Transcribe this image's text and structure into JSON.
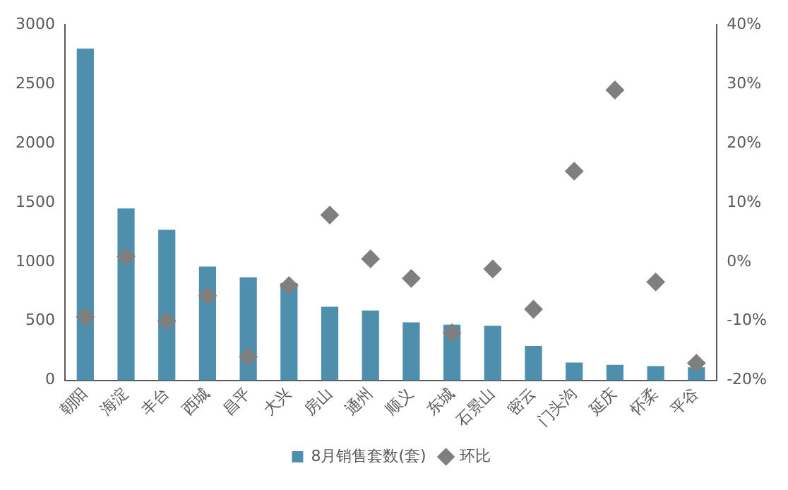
{
  "chart_data": {
    "type": "bar",
    "categories": [
      "朝阳",
      "海淀",
      "丰台",
      "西城",
      "昌平",
      "大兴",
      "房山",
      "通州",
      "顺义",
      "东城",
      "石景山",
      "密云",
      "门头沟",
      "延庆",
      "怀柔",
      "平谷"
    ],
    "series": [
      {
        "name": "8月销售套数(套)",
        "color": "#4f8fae",
        "values": [
          2800,
          1450,
          1270,
          960,
          870,
          820,
          620,
          590,
          490,
          470,
          460,
          290,
          150,
          130,
          120,
          110
        ]
      },
      {
        "name": "环比",
        "type": "scatter",
        "axis": "y2",
        "color": "#7f7f7f",
        "marker": "diamond",
        "values": [
          -9.3,
          0.9,
          -10,
          -5.7,
          -16,
          -4,
          7.9,
          0.5,
          -2.8,
          -12,
          -1.2,
          -8,
          15.3,
          29,
          -3.4,
          -17.1
        ]
      }
    ],
    "ylim": [
      0,
      3000
    ],
    "yticks": [
      0,
      500,
      1000,
      1500,
      2000,
      2500,
      3000
    ],
    "y2lim": [
      -20,
      40
    ],
    "y2ticks": [
      {
        "value": -20,
        "label": "-20%"
      },
      {
        "value": -10,
        "label": "-10%"
      },
      {
        "value": 0,
        "label": "0%"
      },
      {
        "value": 10,
        "label": "10%"
      },
      {
        "value": 20,
        "label": "20%"
      },
      {
        "value": 30,
        "label": "30%"
      },
      {
        "value": 40,
        "label": "40%"
      }
    ],
    "grid": false,
    "legend": "bottom"
  }
}
